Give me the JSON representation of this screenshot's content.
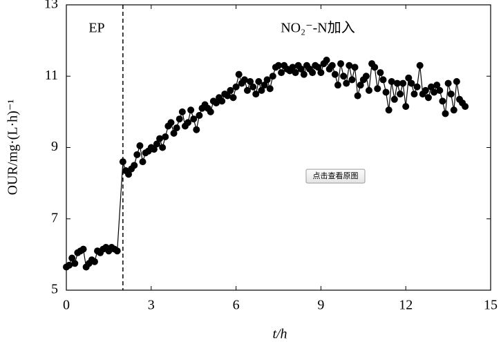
{
  "chart_data": {
    "type": "scatter-line",
    "xlabel": "t/h",
    "ylabel": "OUR/mg·(L·h)⁻¹",
    "annotations": [
      "EP",
      "NO₂⁻-N加入"
    ],
    "phase_boundary_x": 2,
    "xlim": [
      0,
      15
    ],
    "xticks": [
      0,
      3,
      6,
      9,
      12,
      15
    ],
    "ylim": [
      5,
      13
    ],
    "yticks": [
      5,
      7,
      9,
      11,
      13
    ],
    "color": "#000000",
    "x": [
      0,
      0.1,
      0.2,
      0.3,
      0.4,
      0.5,
      0.6,
      0.7,
      0.8,
      0.9,
      1.0,
      1.1,
      1.2,
      1.3,
      1.4,
      1.5,
      1.6,
      1.7,
      1.8,
      2.0,
      2.1,
      2.2,
      2.3,
      2.4,
      2.5,
      2.6,
      2.7,
      2.8,
      2.9,
      3.0,
      3.1,
      3.2,
      3.3,
      3.4,
      3.5,
      3.6,
      3.7,
      3.8,
      3.9,
      4.0,
      4.1,
      4.2,
      4.3,
      4.4,
      4.5,
      4.6,
      4.7,
      4.8,
      4.9,
      5.0,
      5.1,
      5.2,
      5.3,
      5.4,
      5.5,
      5.6,
      5.7,
      5.8,
      5.9,
      6.0,
      6.1,
      6.2,
      6.3,
      6.4,
      6.5,
      6.6,
      6.7,
      6.8,
      6.9,
      7.0,
      7.1,
      7.2,
      7.3,
      7.4,
      7.5,
      7.6,
      7.7,
      7.8,
      7.9,
      8.0,
      8.1,
      8.2,
      8.3,
      8.4,
      8.5,
      8.6,
      8.7,
      8.8,
      8.9,
      9.0,
      9.1,
      9.2,
      9.3,
      9.4,
      9.5,
      9.6,
      9.7,
      9.8,
      9.9,
      10.0,
      10.1,
      10.2,
      10.3,
      10.4,
      10.5,
      10.6,
      10.7,
      10.8,
      10.9,
      11.0,
      11.1,
      11.2,
      11.3,
      11.4,
      11.5,
      11.6,
      11.7,
      11.8,
      11.9,
      12.0,
      12.1,
      12.2,
      12.3,
      12.4,
      12.5,
      12.6,
      12.7,
      12.8,
      12.9,
      13.0,
      13.1,
      13.2,
      13.3,
      13.4,
      13.5,
      13.6,
      13.7,
      13.8,
      13.9,
      14.0,
      14.1
    ],
    "values": [
      5.65,
      5.7,
      5.9,
      5.75,
      6.05,
      6.1,
      6.15,
      5.65,
      5.75,
      5.85,
      5.8,
      6.1,
      6.05,
      6.15,
      6.2,
      6.1,
      6.2,
      6.15,
      6.1,
      8.6,
      8.35,
      8.25,
      8.4,
      8.5,
      8.8,
      9.05,
      8.6,
      8.85,
      8.9,
      9.0,
      8.95,
      9.1,
      9.25,
      9.0,
      9.3,
      9.6,
      9.7,
      9.4,
      9.55,
      9.8,
      10.0,
      9.6,
      9.7,
      10.05,
      9.8,
      9.5,
      9.9,
      10.1,
      10.2,
      10.1,
      10.0,
      10.3,
      10.25,
      10.4,
      10.3,
      10.5,
      10.45,
      10.6,
      10.4,
      10.7,
      11.05,
      10.8,
      10.9,
      10.6,
      10.85,
      10.7,
      10.5,
      10.85,
      10.6,
      10.75,
      10.9,
      10.65,
      11.0,
      11.25,
      11.3,
      11.1,
      11.3,
      11.2,
      11.15,
      11.25,
      11.1,
      11.3,
      11.2,
      11.05,
      11.3,
      11.2,
      11.1,
      11.3,
      11.25,
      11.1,
      11.35,
      11.45,
      11.2,
      11.3,
      11.05,
      10.75,
      11.35,
      11.0,
      10.8,
      11.3,
      10.9,
      11.25,
      10.45,
      10.75,
      10.9,
      11.0,
      10.6,
      11.35,
      11.25,
      10.65,
      11.1,
      10.9,
      10.55,
      10.05,
      10.85,
      10.35,
      10.8,
      10.5,
      10.8,
      10.15,
      10.95,
      10.8,
      10.5,
      10.7,
      11.3,
      10.5,
      10.6,
      10.4,
      10.7,
      10.55,
      10.75,
      10.6,
      10.3,
      9.95,
      10.8,
      10.5,
      10.05,
      10.85,
      10.35,
      10.25,
      10.15
    ]
  },
  "overlay_button": "点击查看原图"
}
